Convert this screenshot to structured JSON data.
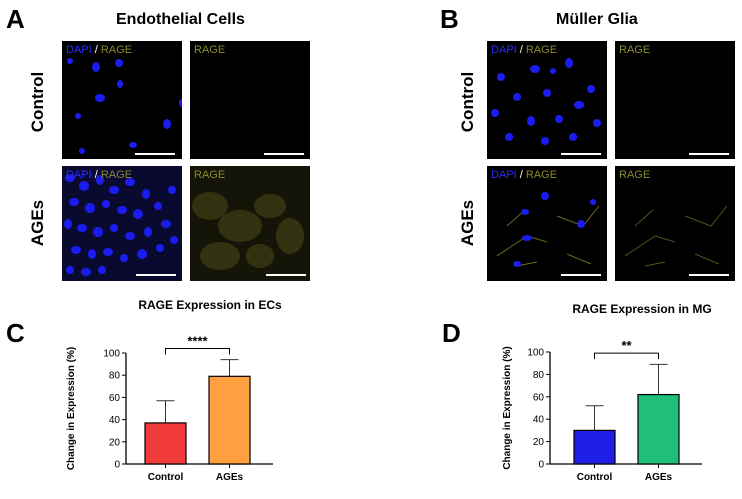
{
  "panels": {
    "A": {
      "letter": "A",
      "title": "Endothelial Cells"
    },
    "B": {
      "letter": "B",
      "title": "Müller Glia"
    },
    "C": {
      "letter": "C"
    },
    "D": {
      "letter": "D"
    }
  },
  "rows": {
    "control": "Control",
    "ages": "AGEs"
  },
  "labels": {
    "dapi": "DAPI",
    "slash": " / ",
    "rage": "RAGE"
  },
  "colors": {
    "dapi_blue": "#2a2cff",
    "rage_yellow": "#8b8a2e",
    "scale_bar": "#ffffff"
  },
  "chart_data": [
    {
      "type": "bar",
      "title": "RAGE Expression in ECs",
      "ylabel": "Change in Expression (%)",
      "xlabel": "",
      "categories": [
        "Control",
        "AGEs"
      ],
      "values": [
        37,
        79
      ],
      "errors": [
        20,
        15
      ],
      "colors": [
        "#f23b3b",
        "#ff9f40"
      ],
      "ylim": [
        0,
        100
      ],
      "yticks": [
        0,
        20,
        40,
        60,
        80,
        100
      ],
      "significance": "****",
      "grid": false
    },
    {
      "type": "bar",
      "title": "RAGE Expression in MG",
      "ylabel": "Change in Expression (%)",
      "xlabel": "",
      "categories": [
        "Control",
        "AGEs"
      ],
      "values": [
        30,
        62
      ],
      "errors": [
        22,
        27
      ],
      "colors": [
        "#1f1fe8",
        "#1fbf7a"
      ],
      "ylim": [
        0,
        100
      ],
      "yticks": [
        0,
        20,
        40,
        60,
        80,
        100
      ],
      "significance": "**",
      "grid": false
    }
  ]
}
